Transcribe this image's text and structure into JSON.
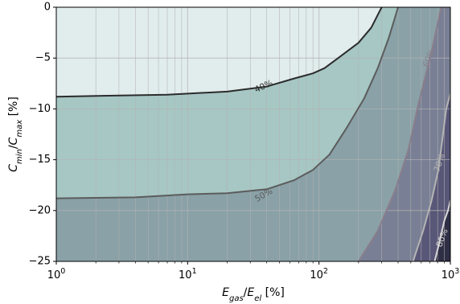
{
  "chart_data": {
    "type": "contour",
    "xlabel": "E_gas/E_el [%]",
    "ylabel": "C_min/C_max [%]",
    "xscale": "log",
    "xlim": [
      1,
      1000
    ],
    "ylim": [
      -25,
      0
    ],
    "xticks": [
      {
        "value": 1,
        "base": "10",
        "exp": "0"
      },
      {
        "value": 10,
        "base": "10",
        "exp": "1"
      },
      {
        "value": 100,
        "base": "10",
        "exp": "2"
      },
      {
        "value": 1000,
        "base": "10",
        "exp": "3"
      }
    ],
    "yticks": [
      {
        "value": 0,
        "label": "0"
      },
      {
        "value": -5,
        "label": "−5"
      },
      {
        "value": -10,
        "label": "−10"
      },
      {
        "value": -15,
        "label": "−15"
      },
      {
        "value": -20,
        "label": "−20"
      },
      {
        "value": -25,
        "label": "−25"
      }
    ],
    "grid": true,
    "levels": [
      {
        "label": "40%",
        "fill_below": "#a6c7c4",
        "line_color": "#2b2b2b",
        "label_at": [
          38,
          -7.8
        ],
        "label_angle": -24,
        "points": [
          [
            1,
            -8.8
          ],
          [
            7,
            -8.6
          ],
          [
            20,
            -8.3
          ],
          [
            40,
            -7.8
          ],
          [
            65,
            -7
          ],
          [
            90,
            -6.5
          ],
          [
            110,
            -6
          ],
          [
            140,
            -5
          ],
          [
            200,
            -3.5
          ],
          [
            250,
            -2
          ],
          [
            300,
            0
          ]
        ]
      },
      {
        "label": "50%",
        "fill_below": "#89a1a7",
        "line_color": "#5c5c5c",
        "label_at": [
          38,
          -18.5
        ],
        "label_angle": -30,
        "points": [
          [
            1,
            -18.8
          ],
          [
            4,
            -18.7
          ],
          [
            10,
            -18.4
          ],
          [
            20,
            -18.3
          ],
          [
            40,
            -17.9
          ],
          [
            65,
            -17
          ],
          [
            90,
            -16
          ],
          [
            120,
            -14.5
          ],
          [
            160,
            -12
          ],
          [
            220,
            -9
          ],
          [
            280,
            -6
          ],
          [
            340,
            -3
          ],
          [
            400,
            0
          ]
        ]
      },
      {
        "label": "60%",
        "fill_below": "#797f94",
        "line_color": "#8a7e8c",
        "label_at": [
          690,
          -5
        ],
        "label_angle": -68,
        "points": [
          [
            200,
            -25
          ],
          [
            280,
            -22
          ],
          [
            380,
            -18
          ],
          [
            480,
            -14
          ],
          [
            560,
            -10
          ],
          [
            640,
            -7
          ],
          [
            730,
            -4
          ],
          [
            820,
            -1
          ],
          [
            850,
            0
          ]
        ]
      },
      {
        "label": "70%",
        "fill_below": "#595778",
        "line_color": "#b4b4b4",
        "label_at": [
          830,
          -15.3
        ],
        "label_angle": -72,
        "points": [
          [
            520,
            -25
          ],
          [
            620,
            -22
          ],
          [
            720,
            -19
          ],
          [
            810,
            -16
          ],
          [
            870,
            -13
          ],
          [
            930,
            -10
          ],
          [
            1000,
            -8.5
          ]
        ]
      },
      {
        "label": "80%",
        "fill_below": "#2e2e45",
        "line_color": "#d8d8d8",
        "label_at": [
          870,
          -22.7
        ],
        "label_angle": -70,
        "points": [
          [
            760,
            -25
          ],
          [
            830,
            -23
          ],
          [
            900,
            -21
          ],
          [
            960,
            -20
          ],
          [
            1000,
            -19
          ]
        ]
      }
    ]
  }
}
